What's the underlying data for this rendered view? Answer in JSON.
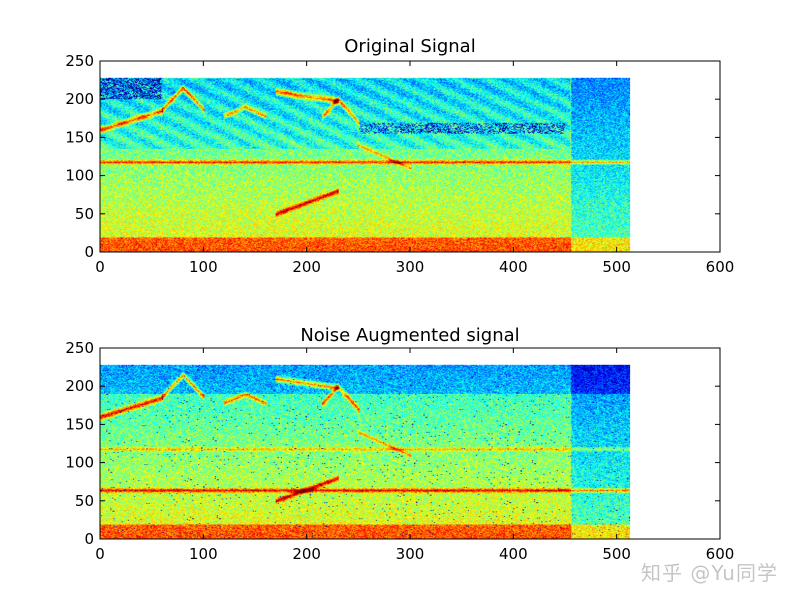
{
  "chart_data": [
    {
      "type": "heatmap",
      "title": "Original Signal",
      "xlim": [
        0,
        600
      ],
      "ylim": [
        0,
        250
      ],
      "x_ticks": [
        "0",
        "100",
        "200",
        "300",
        "400",
        "500",
        "600"
      ],
      "y_ticks": [
        "0",
        "50",
        "100",
        "150",
        "200",
        "250"
      ],
      "data_extent": {
        "x": [
          0,
          513
        ],
        "y": [
          0,
          228
        ]
      },
      "colormap": "jet",
      "horizontal_bands": [
        {
          "y": 118,
          "level": "high"
        }
      ],
      "features": [
        {
          "name": "rising chirp",
          "x": [
            0,
            60
          ],
          "y": [
            160,
            185
          ]
        },
        {
          "name": "arc",
          "x": [
            60,
            100
          ],
          "y": [
            165,
            215
          ]
        },
        {
          "name": "arc",
          "x": [
            170,
            250
          ],
          "y": [
            165,
            215
          ]
        },
        {
          "name": "low-frequency sweep",
          "x": [
            170,
            230
          ],
          "y": [
            45,
            80
          ]
        },
        {
          "name": "silence region",
          "x": [
            455,
            513
          ],
          "y": [
            0,
            228
          ]
        }
      ]
    },
    {
      "type": "heatmap",
      "title": "Noise Augmented signal",
      "xlim": [
        0,
        600
      ],
      "ylim": [
        0,
        250
      ],
      "x_ticks": [
        "0",
        "100",
        "200",
        "300",
        "400",
        "500",
        "600"
      ],
      "y_ticks": [
        "0",
        "50",
        "100",
        "150",
        "200",
        "250"
      ],
      "data_extent": {
        "x": [
          0,
          513
        ],
        "y": [
          0,
          228
        ]
      },
      "colormap": "jet",
      "horizontal_bands": [
        {
          "y": 118,
          "level": "medium"
        },
        {
          "y": 64,
          "level": "high"
        }
      ],
      "features": [
        {
          "name": "rising chirp",
          "x": [
            0,
            60
          ],
          "y": [
            160,
            185
          ]
        },
        {
          "name": "arc",
          "x": [
            60,
            100
          ],
          "y": [
            165,
            215
          ]
        },
        {
          "name": "arc",
          "x": [
            170,
            250
          ],
          "y": [
            165,
            215
          ]
        },
        {
          "name": "silence region",
          "x": [
            455,
            513
          ],
          "y": [
            0,
            228
          ]
        }
      ]
    }
  ],
  "watermark": "知乎 @Yu同学"
}
